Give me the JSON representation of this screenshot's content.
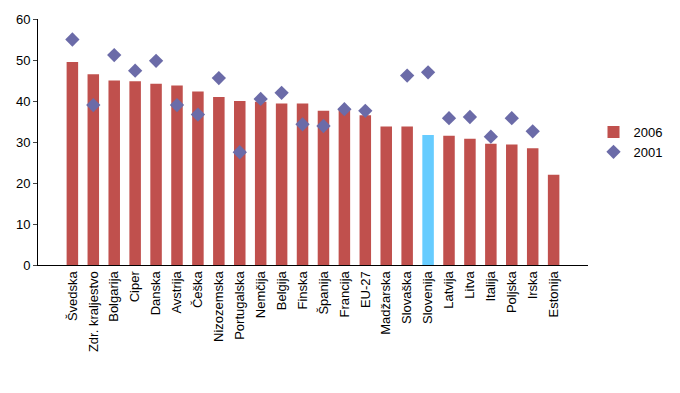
{
  "chart_data": {
    "type": "bar",
    "categories": [
      "Švedska",
      "Zdr. kraljestvo",
      "Bolgarija",
      "Ciper",
      "Danska",
      "Avstrija",
      "Češka",
      "Nizozemska",
      "Portugalska",
      "Nemčija",
      "Belgija",
      "Finska",
      "Španija",
      "Francija",
      "EU-27",
      "Madžarska",
      "Slovaška",
      "Slovenija",
      "Latvija",
      "Litva",
      "Italija",
      "Poljska",
      "Irska",
      "Estonija"
    ],
    "series": [
      {
        "name": "2006",
        "type": "bar",
        "color": "#c0504d",
        "colors": [
          "#c0504d",
          "#c0504d",
          "#c0504d",
          "#c0504d",
          "#c0504d",
          "#c0504d",
          "#c0504d",
          "#c0504d",
          "#c0504d",
          "#c0504d",
          "#c0504d",
          "#c0504d",
          "#c0504d",
          "#c0504d",
          "#c0504d",
          "#c0504d",
          "#c0504d",
          "#66ccff",
          "#c0504d",
          "#c0504d",
          "#c0504d",
          "#c0504d",
          "#c0504d",
          "#c0504d"
        ],
        "values": [
          49.5,
          46.5,
          45,
          44.8,
          44.2,
          43.8,
          42.3,
          41,
          40,
          39.8,
          39.4,
          39.4,
          37.6,
          38,
          36.5,
          33.8,
          33.8,
          31.7,
          31.5,
          30.8,
          29.6,
          29.4,
          28.5,
          22
        ]
      },
      {
        "name": "2001",
        "type": "scatter",
        "marker": "diamond",
        "color": "#6b6ba8",
        "values": [
          55,
          39,
          51.2,
          47.4,
          49.8,
          39,
          36.7,
          45.6,
          27.5,
          40.5,
          42,
          34.3,
          33.9,
          38,
          37.6,
          null,
          46.2,
          47,
          35.8,
          36.1,
          31.3,
          35.8,
          32.6,
          null
        ]
      }
    ],
    "ylim": [
      0,
      60
    ],
    "yticks": [
      0,
      10,
      20,
      30,
      40,
      50,
      60
    ],
    "grid": false,
    "legend": "right"
  }
}
